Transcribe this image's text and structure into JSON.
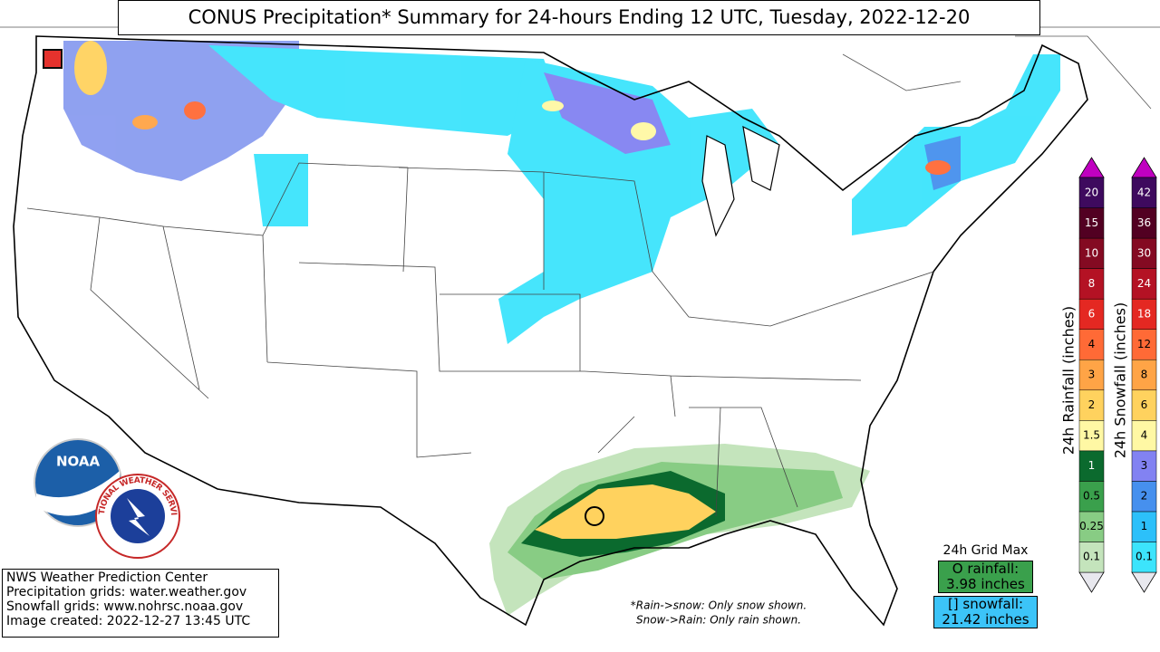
{
  "header": {
    "title": "CONUS Precipitation* Summary for 24-hours Ending 12 UTC, Tuesday, 2022-12-20"
  },
  "credits": [
    "NWS Weather Prediction Center",
    "Precipitation grids: water.weather.gov",
    "Snowfall grids: www.nohrsc.noaa.gov",
    "Image created: 2022-12-27 13:45 UTC"
  ],
  "logos": {
    "noaa": "NOAA",
    "nws": "NATIONAL WEATHER SERVICE"
  },
  "notes": [
    "*Rain->snow: Only snow shown.",
    "Snow->Rain: Only rain shown."
  ],
  "grid_max": {
    "title": "24h Grid Max",
    "rain_label": "O rainfall:",
    "rain_value": "3.98 inches",
    "snow_label": "[] snowfall:",
    "snow_value": "21.42 inches"
  },
  "rain_legend": {
    "title": "24h Rainfall (inches)",
    "labels": [
      "0.1",
      "0.25",
      "0.5",
      "1",
      "1.5",
      "2",
      "3",
      "4",
      "6",
      "8",
      "10",
      "15",
      "20"
    ],
    "colors": [
      "#c4e4bc",
      "#88cc84",
      "#3aa04c",
      "#0b6a2e",
      "#fff8a4",
      "#ffd25e",
      "#ffa446",
      "#ff6a36",
      "#e42822",
      "#b41224",
      "#840a22",
      "#520022",
      "#3e0a5e"
    ]
  },
  "snow_legend": {
    "title": "24h Snowfall (inches)",
    "labels": [
      "0.1",
      "1",
      "2",
      "3",
      "4",
      "6",
      "8",
      "12",
      "18",
      "24",
      "30",
      "36",
      "42"
    ],
    "colors": [
      "#3ce4fc",
      "#2cc0fa",
      "#4690ee",
      "#8282f2",
      "#fff8a4",
      "#ffd25e",
      "#ffa446",
      "#ff6a36",
      "#e42822",
      "#b41224",
      "#840a22",
      "#520022",
      "#3e0a5e"
    ]
  }
}
